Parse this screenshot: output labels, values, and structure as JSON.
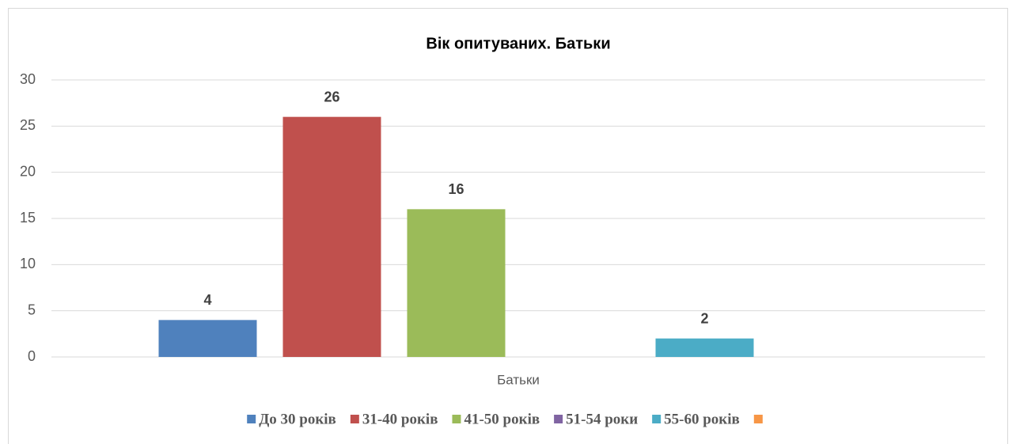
{
  "chart_data": {
    "type": "bar",
    "title": "Вік опитуваних. Батьки",
    "categories": [
      "Батьки"
    ],
    "series": [
      {
        "name": "До 30 років",
        "color": "#4f81bd",
        "values": [
          4
        ]
      },
      {
        "name": "31-40 років",
        "color": "#c0504d",
        "values": [
          26
        ]
      },
      {
        "name": "41-50 років",
        "color": "#9bbb59",
        "values": [
          16
        ]
      },
      {
        "name": "51-54 роки",
        "color": "#8064a2",
        "values": [
          null
        ]
      },
      {
        "name": "55-60 років",
        "color": "#4bacc6",
        "values": [
          2
        ]
      },
      {
        "name": null,
        "color": "#f79646",
        "values": [
          null
        ]
      }
    ],
    "ylim": [
      0,
      30
    ],
    "yticks": [
      0,
      5,
      10,
      15,
      20,
      25,
      30
    ],
    "grid": true,
    "legend": "bottom"
  }
}
